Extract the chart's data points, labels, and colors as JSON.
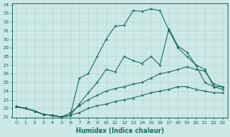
{
  "xlabel": "Humidex (Indice chaleur)",
  "bg_color": "#cce9e5",
  "grid_color": "#b0d8d3",
  "line_color": "#1a6b5a",
  "ylim": [
    21,
    34
  ],
  "xlim": [
    -0.5,
    23.5
  ],
  "yticks": [
    21,
    22,
    23,
    24,
    25,
    26,
    27,
    28,
    29,
    30,
    31,
    32,
    33,
    34
  ],
  "xticks": [
    0,
    1,
    2,
    3,
    4,
    5,
    6,
    7,
    8,
    9,
    10,
    11,
    12,
    13,
    14,
    15,
    16,
    17,
    18,
    19,
    20,
    21,
    22,
    23
  ],
  "line1_y": [
    22.2,
    22.0,
    21.7,
    21.3,
    21.2,
    21.0,
    21.2,
    25.5,
    26.0,
    28.0,
    30.0,
    31.5,
    31.6,
    33.3,
    33.2,
    33.5,
    33.3,
    31.0,
    29.0,
    28.0,
    27.0,
    26.5,
    24.5,
    24.5
  ],
  "line2_y": [
    22.2,
    22.0,
    21.7,
    21.3,
    21.2,
    21.0,
    21.2,
    22.5,
    23.8,
    25.0,
    26.5,
    26.2,
    28.0,
    27.5,
    27.2,
    28.0,
    27.0,
    31.2,
    29.2,
    28.5,
    27.0,
    25.0,
    24.5,
    24.2
  ],
  "line3_y": [
    22.2,
    22.0,
    21.7,
    21.3,
    21.2,
    21.0,
    21.5,
    22.3,
    23.0,
    23.5,
    24.0,
    24.3,
    24.5,
    24.8,
    25.0,
    25.5,
    26.0,
    26.2,
    26.5,
    26.8,
    26.5,
    26.3,
    24.8,
    24.5
  ],
  "line4_y": [
    22.2,
    22.0,
    21.7,
    21.3,
    21.2,
    21.0,
    21.2,
    21.5,
    22.0,
    22.3,
    22.5,
    22.8,
    23.0,
    23.2,
    23.5,
    23.8,
    24.0,
    24.2,
    24.5,
    24.5,
    24.2,
    24.0,
    23.8,
    23.8
  ]
}
